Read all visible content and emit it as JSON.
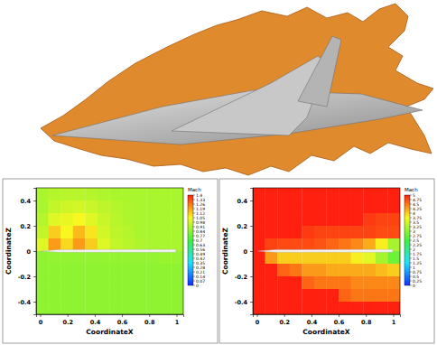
{
  "chart_data": [
    {
      "type": "heatmap",
      "x_label": "CoordinateX",
      "y_label": "CoordinateZ",
      "xlim": [
        -0.03,
        1.05
      ],
      "ylim": [
        -0.5,
        0.5
      ],
      "xticks": [
        0,
        0.2,
        0.4,
        0.6,
        0.8,
        1
      ],
      "yticks": [
        -0.4,
        -0.2,
        0,
        0.2,
        0.4
      ],
      "x_edges": [
        -0.03,
        0.06,
        0.15,
        0.24,
        0.33,
        0.42,
        0.51,
        0.6,
        0.69,
        0.78,
        0.87,
        0.96,
        1.05
      ],
      "y_edges": [
        0.5,
        0.4,
        0.3,
        0.2,
        0.1,
        0,
        -0.1,
        -0.2,
        -0.3,
        -0.4,
        -0.5
      ],
      "cells": [
        [
          0.9,
          0.92,
          0.93,
          0.93,
          0.92,
          0.91,
          0.9,
          0.9,
          0.9,
          0.9,
          0.9,
          0.9
        ],
        [
          0.9,
          0.95,
          0.97,
          0.98,
          0.96,
          0.94,
          0.92,
          0.91,
          0.9,
          0.9,
          0.9,
          0.9
        ],
        [
          0.92,
          1.0,
          1.02,
          1.05,
          1.0,
          0.96,
          0.93,
          0.91,
          0.9,
          0.9,
          0.9,
          0.9
        ],
        [
          0.95,
          1.12,
          1.05,
          1.15,
          1.08,
          0.98,
          0.94,
          0.92,
          0.9,
          0.9,
          0.9,
          0.9
        ],
        [
          1.0,
          1.2,
          1.1,
          1.2,
          1.12,
          1.0,
          0.95,
          0.93,
          0.91,
          0.9,
          0.9,
          0.9
        ],
        [
          0.85,
          0.86,
          0.86,
          0.86,
          0.86,
          0.86,
          0.86,
          0.86,
          0.86,
          0.86,
          0.87,
          0.87
        ],
        [
          0.85,
          0.85,
          0.85,
          0.85,
          0.85,
          0.85,
          0.85,
          0.85,
          0.85,
          0.85,
          0.85,
          0.85
        ],
        [
          0.85,
          0.85,
          0.85,
          0.85,
          0.85,
          0.85,
          0.85,
          0.85,
          0.85,
          0.85,
          0.85,
          0.85
        ],
        [
          0.85,
          0.85,
          0.85,
          0.85,
          0.85,
          0.85,
          0.85,
          0.85,
          0.85,
          0.85,
          0.85,
          0.85
        ],
        [
          0.85,
          0.85,
          0.85,
          0.85,
          0.85,
          0.85,
          0.85,
          0.85,
          0.85,
          0.85,
          0.85,
          0.85
        ]
      ],
      "colorbar": {
        "label": "Mach",
        "range": [
          0,
          1.4
        ],
        "ticks": [
          0,
          0.07,
          0.14,
          0.21,
          0.28,
          0.35,
          0.42,
          0.49,
          0.56,
          0.63,
          0.7,
          0.77,
          0.84,
          0.91,
          0.98,
          1.05,
          1.12,
          1.19,
          1.26,
          1.33,
          1.4
        ]
      }
    },
    {
      "type": "heatmap",
      "x_label": "CoordinateX",
      "y_label": "CoordinateZ",
      "xlim": [
        -0.03,
        1.05
      ],
      "ylim": [
        -0.5,
        0.5
      ],
      "xticks": [
        0,
        0.2,
        0.4,
        0.6,
        0.8,
        1
      ],
      "yticks": [
        -0.4,
        -0.2,
        0,
        0.2,
        0.4
      ],
      "x_edges": [
        -0.03,
        0.06,
        0.15,
        0.24,
        0.33,
        0.42,
        0.51,
        0.6,
        0.69,
        0.78,
        0.87,
        0.96,
        1.05
      ],
      "y_edges": [
        0.5,
        0.4,
        0.3,
        0.2,
        0.1,
        0,
        -0.1,
        -0.2,
        -0.3,
        -0.4,
        -0.5
      ],
      "cells": [
        [
          5,
          5,
          5,
          5,
          5,
          5,
          5,
          5,
          5,
          5,
          5,
          5
        ],
        [
          5,
          5,
          5,
          5,
          5,
          5,
          5,
          5,
          5,
          5,
          5,
          5
        ],
        [
          5,
          5,
          5,
          5,
          5,
          5,
          5,
          5,
          5,
          4.85,
          4.8,
          4.8
        ],
        [
          5,
          5,
          5,
          5,
          4.85,
          4.8,
          4.8,
          4.8,
          4.8,
          4.8,
          4.75,
          4.75
        ],
        [
          5,
          4.8,
          4.75,
          4.75,
          4.75,
          4.7,
          4.6,
          4.5,
          4.4,
          4.2,
          3.8,
          3.2
        ],
        [
          5,
          4.3,
          4.0,
          4.0,
          4.0,
          4.0,
          4.0,
          4.0,
          3.8,
          3.6,
          3.2,
          2.8
        ],
        [
          5,
          5,
          4.6,
          4.5,
          4.3,
          4.3,
          4.2,
          4.2,
          4.2,
          4.2,
          4.1,
          4.0
        ],
        [
          5,
          5,
          5,
          5,
          4.6,
          4.5,
          4.5,
          4.5,
          4.4,
          4.4,
          4.4,
          4.4
        ],
        [
          5,
          5,
          5,
          5,
          5,
          5,
          5,
          4.6,
          4.5,
          4.5,
          4.5,
          4.5
        ],
        [
          5,
          5,
          5,
          5,
          5,
          5,
          5,
          5,
          5,
          5,
          5,
          5
        ]
      ],
      "colorbar": {
        "label": "Mach",
        "range": [
          0,
          5
        ],
        "ticks": [
          0,
          0.25,
          0.5,
          0.75,
          1,
          1.25,
          1.5,
          1.75,
          2,
          2.25,
          2.5,
          2.75,
          3,
          3.25,
          3.5,
          3.75,
          4,
          4.25,
          4.5,
          4.75,
          5
        ]
      }
    }
  ]
}
